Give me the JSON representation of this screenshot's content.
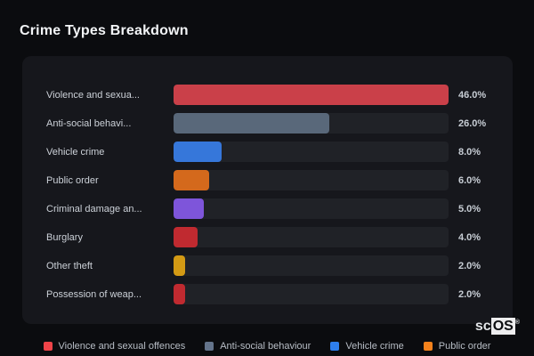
{
  "page_title": "Crime Types Breakdown",
  "chart_data": {
    "type": "bar",
    "orientation": "horizontal",
    "title": "Crime Types Breakdown",
    "unit": "%",
    "xlim": [
      0,
      46
    ],
    "grid": false,
    "categories": [
      "Violence and sexua...",
      "Anti-social behavi...",
      "Vehicle crime",
      "Public order",
      "Criminal damage an...",
      "Burglary",
      "Other theft",
      "Possession of weap..."
    ],
    "values": [
      46.0,
      26.0,
      8.0,
      6.0,
      5.0,
      4.0,
      2.0,
      2.0
    ],
    "bars": [
      {
        "label": "Violence and sexua...",
        "full_label": "Violence and sexual offences",
        "value": 46.0,
        "display_value": "46.0%",
        "color": "#ca4049"
      },
      {
        "label": "Anti-social behavi...",
        "full_label": "Anti-social behaviour",
        "value": 26.0,
        "display_value": "26.0%",
        "color": "#59687a"
      },
      {
        "label": "Vehicle crime",
        "full_label": "Vehicle crime",
        "value": 8.0,
        "display_value": "8.0%",
        "color": "#3677da"
      },
      {
        "label": "Public order",
        "full_label": "Public order",
        "value": 6.0,
        "display_value": "6.0%",
        "color": "#d4691c"
      },
      {
        "label": "Criminal damage an...",
        "value": 5.0,
        "display_value": "5.0%",
        "color": "#7e55da"
      },
      {
        "label": "Burglary",
        "value": 4.0,
        "display_value": "4.0%",
        "color": "#c02a30"
      },
      {
        "label": "Other theft",
        "value": 2.0,
        "display_value": "2.0%",
        "color": "#d39a14"
      },
      {
        "label": "Possession of weap...",
        "value": 2.0,
        "display_value": "2.0%",
        "color": "#c02a30"
      }
    ],
    "legend": {
      "position": "bottom",
      "items": [
        {
          "label": "Violence and sexual offences",
          "color": "#ef4449"
        },
        {
          "label": "Anti-social behaviour",
          "color": "#64748b"
        },
        {
          "label": "Vehicle crime",
          "color": "#2e7fee"
        },
        {
          "label": "Public order",
          "color": "#f4821c"
        }
      ]
    }
  },
  "colors": {
    "page_background": "#0b0c0f",
    "card_background": "#16171c",
    "track_background": "#202227",
    "title_text": "#f3f5f7",
    "label_text": "#ccd1d8",
    "value_text": "#c7cdd4",
    "legend_text": "#b8bec6"
  },
  "watermark": {
    "prefix": "sc",
    "suffix": "OS",
    "reg": "®"
  }
}
